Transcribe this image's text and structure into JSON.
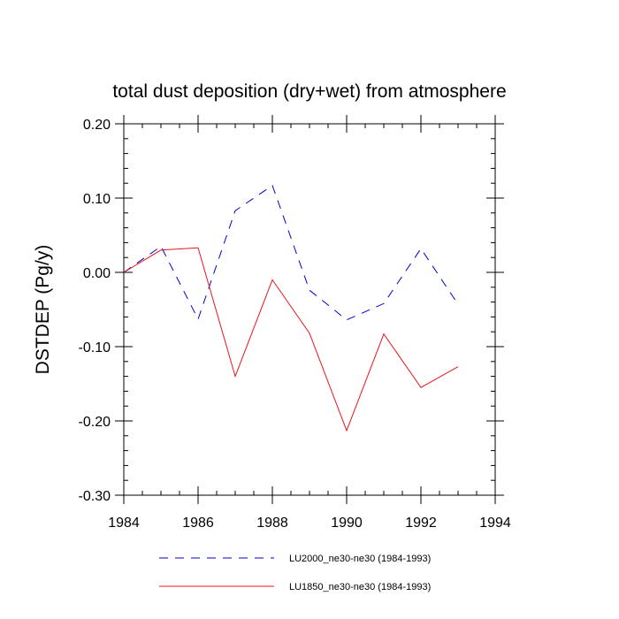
{
  "chart_data": {
    "type": "line",
    "title": "total dust deposition (dry+wet) from atmosphere",
    "xlabel": "",
    "ylabel": "DSTDEP  (Pg/y)",
    "xlim": [
      1984,
      1994
    ],
    "ylim": [
      -0.3,
      0.2
    ],
    "xticks": [
      1984,
      1986,
      1988,
      1990,
      1992,
      1994
    ],
    "xtick_labels": [
      "1984",
      "1986",
      "1988",
      "1990",
      "1992",
      "1994"
    ],
    "yticks": [
      -0.3,
      -0.2,
      -0.1,
      0.0,
      0.1,
      0.2
    ],
    "ytick_labels": [
      "-0.30",
      "-0.20",
      "-0.10",
      "0.00",
      "0.10",
      "0.20"
    ],
    "x": [
      1984,
      1985,
      1986,
      1987,
      1988,
      1989,
      1990,
      1991,
      1992,
      1993
    ],
    "series": [
      {
        "name": "LU2000_ne30-ne30 (1984-1993)",
        "color": "#0000cc",
        "style": "dashed",
        "values": [
          0.0,
          0.035,
          -0.063,
          0.083,
          0.117,
          -0.024,
          -0.064,
          -0.042,
          0.032,
          -0.043
        ]
      },
      {
        "name": "LU1850_ne30-ne30 (1984-1993)",
        "color": "#e8141e",
        "style": "solid",
        "values": [
          0.0,
          0.03,
          0.033,
          -0.14,
          -0.01,
          -0.082,
          -0.213,
          -0.083,
          -0.155,
          -0.127
        ]
      }
    ],
    "legend_position": "bottom",
    "grid": false
  }
}
